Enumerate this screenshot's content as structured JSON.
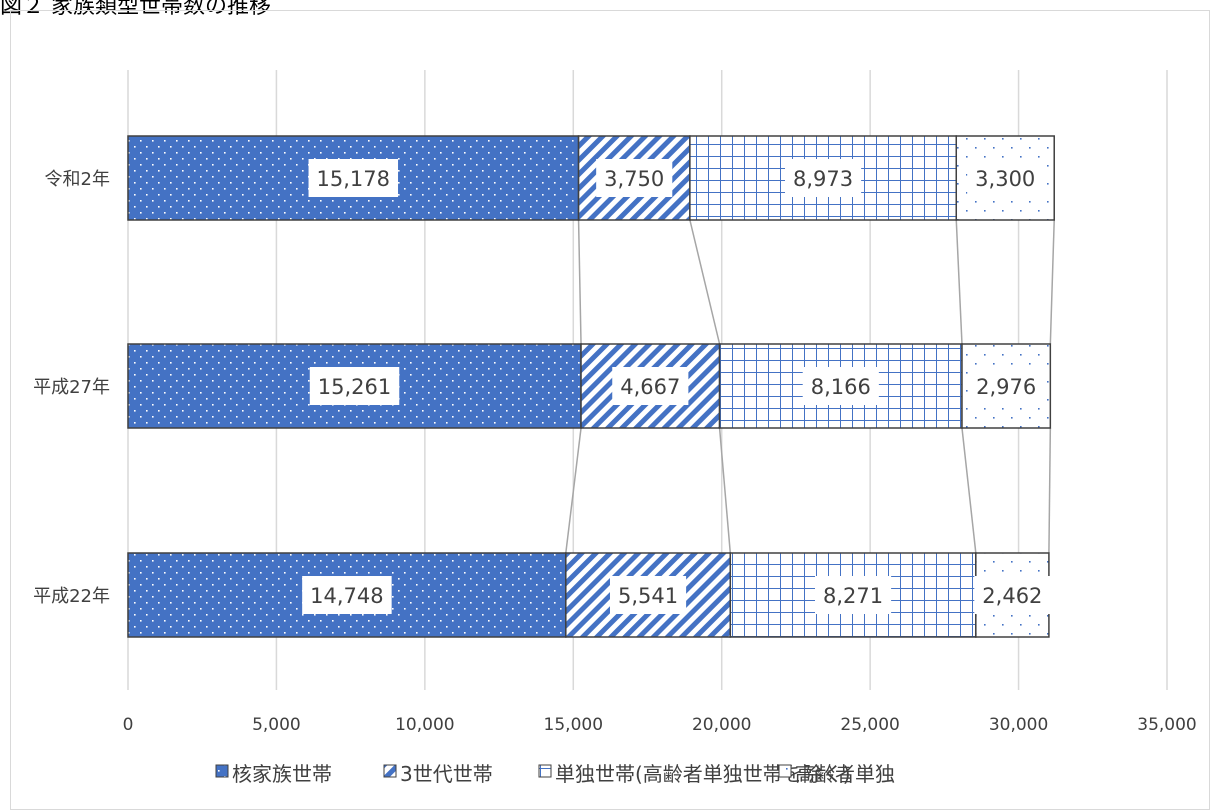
{
  "figure_title": "図２ 家族類型世帯数の推移",
  "colors": {
    "nuclear": "#4472c4",
    "grid": "#d9d9d9",
    "connector": "#a6a6a6",
    "bar_outline": "#404040",
    "text": "#404040"
  },
  "chart_data": {
    "type": "bar",
    "orientation": "horizontal",
    "stacked": true,
    "categories": [
      "令和2年",
      "平成27年",
      "平成22年"
    ],
    "series": [
      {
        "name": "核家族世帯",
        "pattern": "blue-dots",
        "values": [
          15178,
          15261,
          14748
        ],
        "labels": [
          "15,178",
          "15,261",
          "14,748"
        ]
      },
      {
        "name": "3世代世帯",
        "pattern": "diagonal-stripes",
        "values": [
          3750,
          4667,
          5541
        ],
        "labels": [
          "3,750",
          "4,667",
          "5,541"
        ]
      },
      {
        "name": "単独世帯(高齢者単独世帯を除く)",
        "pattern": "grid",
        "values": [
          8973,
          8166,
          8271
        ],
        "labels": [
          "8,973",
          "8,166",
          "8,271"
        ]
      },
      {
        "name": "高齢者単独",
        "pattern": "sparse-dots",
        "values": [
          3300,
          2976,
          2462
        ],
        "labels": [
          "3,300",
          "2,976",
          "2,462"
        ]
      }
    ],
    "xlim": [
      0,
      35000
    ],
    "x_ticks": [
      0,
      5000,
      10000,
      15000,
      20000,
      25000,
      30000,
      35000
    ],
    "x_tick_labels": [
      "0",
      "5,000",
      "10,000",
      "15,000",
      "20,000",
      "25,000",
      "30,000",
      "35,000"
    ],
    "grid": true,
    "series_lines": true,
    "legend_position": "bottom"
  }
}
